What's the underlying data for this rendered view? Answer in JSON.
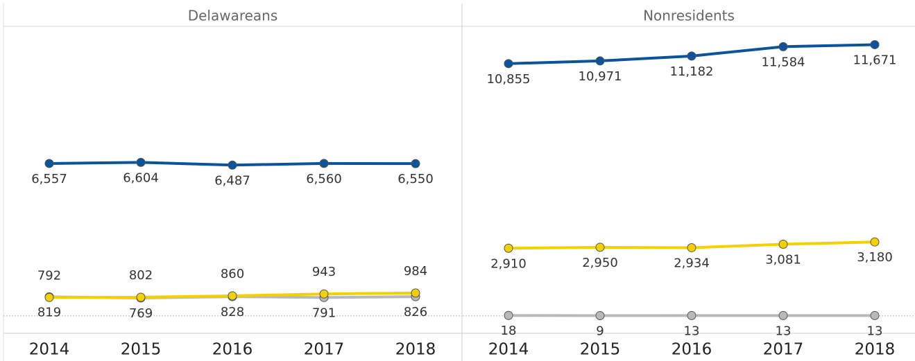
{
  "chart_data": [
    {
      "type": "line",
      "title": "Delawareans",
      "categories": [
        "2014",
        "2015",
        "2016",
        "2017",
        "2018"
      ],
      "ylim": [
        -750,
        12400
      ],
      "series": [
        {
          "color": "#0b539a",
          "values": [
            6557,
            6604,
            6487,
            6560,
            6550
          ],
          "value_labels": [
            "6,557",
            "6,604",
            "6,487",
            "6,560",
            "6,550"
          ]
        },
        {
          "color": "#b9b9b9",
          "values": [
            819,
            769,
            828,
            791,
            826
          ]
        },
        {
          "color": "#f5d000",
          "values": [
            792,
            802,
            860,
            943,
            984
          ]
        }
      ]
    },
    {
      "type": "line",
      "title": "Nonresidents",
      "categories": [
        "2014",
        "2015",
        "2016",
        "2017",
        "2018"
      ],
      "ylim": [
        -750,
        12400
      ],
      "series": [
        {
          "color": "#0b539a",
          "values": [
            10855,
            10971,
            11182,
            11584,
            11671
          ],
          "value_labels": [
            "10,855",
            "10,971",
            "11,182",
            "11,584",
            "11,671"
          ]
        },
        {
          "color": "#b9b9b9",
          "values": [
            18,
            9,
            13,
            13,
            13
          ]
        },
        {
          "color": "#f5d000",
          "values": [
            2910,
            2950,
            2934,
            3081,
            3180
          ],
          "value_labels": [
            "2,910",
            "2,950",
            "2,934",
            "3,081",
            "3,180"
          ]
        }
      ]
    }
  ]
}
